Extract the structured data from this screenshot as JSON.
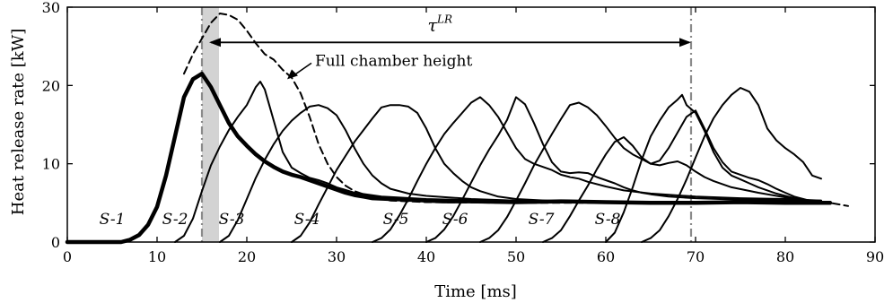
{
  "chart_data": {
    "type": "line",
    "xlabel": "Time [ms]",
    "ylabel": "Heat release rate [kW]",
    "xlim": [
      0,
      90
    ],
    "ylim": [
      0,
      30
    ],
    "xticks": [
      0,
      10,
      20,
      30,
      40,
      50,
      60,
      70,
      80,
      90
    ],
    "yticks": [
      0,
      10,
      20,
      30
    ],
    "grid": false,
    "annotations": {
      "tau": {
        "text": "τ",
        "sup": "LR",
        "start": 15.8,
        "end": 69.5,
        "y": 25.5
      },
      "full_chamber": {
        "text": "Full chamber height",
        "arrow_to": [
          24.5,
          20.8
        ]
      },
      "vlines": [
        15.0,
        69.5
      ],
      "shaded_band": [
        15.0,
        16.9
      ]
    },
    "stage_labels": [
      {
        "text": "S-1",
        "x": 5.0
      },
      {
        "text": "S-2",
        "x": 12.0
      },
      {
        "text": "S-3",
        "x": 18.3
      },
      {
        "text": "S-4",
        "x": 26.7
      },
      {
        "text": "S-5",
        "x": 36.6
      },
      {
        "text": "S-6",
        "x": 43.2
      },
      {
        "text": "S-7",
        "x": 52.8
      },
      {
        "text": "S-8",
        "x": 60.2
      }
    ],
    "series": [
      {
        "style": "thick",
        "x": [
          0,
          3,
          6,
          7,
          8,
          9,
          10,
          11,
          12,
          13,
          14,
          15,
          16,
          17,
          18,
          19,
          20,
          21,
          22,
          23,
          24,
          25,
          26,
          27,
          28,
          29,
          30,
          31,
          32,
          33,
          34,
          36,
          38,
          40,
          42,
          45,
          50,
          55,
          60,
          65,
          70,
          75,
          80,
          85
        ],
        "y": [
          0,
          0,
          0,
          0.3,
          0.9,
          2.2,
          4.5,
          8.5,
          13.5,
          18.5,
          20.8,
          21.5,
          19.8,
          17.5,
          15.2,
          13.5,
          12.3,
          11.2,
          10.3,
          9.6,
          9.0,
          8.6,
          8.3,
          7.9,
          7.5,
          7.1,
          6.7,
          6.3,
          6.0,
          5.8,
          5.6,
          5.5,
          5.4,
          5.3,
          5.2,
          5.2,
          5.1,
          5.2,
          5.1,
          5.0,
          5.0,
          5.1,
          5.0,
          5.0
        ]
      },
      {
        "style": "dashed",
        "x": [
          13,
          14,
          15,
          16,
          17,
          18,
          19,
          20,
          21,
          22,
          23,
          24,
          25,
          26,
          27,
          28,
          29,
          30,
          31,
          32,
          33,
          34,
          35,
          36,
          40,
          50,
          60,
          70,
          80,
          85,
          87
        ],
        "y": [
          21.5,
          24.0,
          26.0,
          28.0,
          29.2,
          29.0,
          28.4,
          27.0,
          25.4,
          24.0,
          23.3,
          22.0,
          21.0,
          19.0,
          16.0,
          12.5,
          10.0,
          8.3,
          7.2,
          6.5,
          6.1,
          5.8,
          5.5,
          5.3,
          5.1,
          5.0,
          5.0,
          5.1,
          5.0,
          5.0,
          4.6
        ]
      },
      {
        "style": "thin",
        "x": [
          12,
          13,
          14,
          15,
          16,
          17,
          18,
          19,
          20,
          21,
          21.5,
          22,
          23,
          24,
          25,
          26,
          27,
          28,
          29,
          30,
          32,
          35,
          40,
          50,
          60,
          70,
          80,
          84
        ],
        "y": [
          0,
          0.8,
          3.0,
          6.5,
          9.8,
          12.2,
          14.3,
          16.0,
          17.5,
          19.8,
          20.5,
          19.5,
          15.5,
          11.5,
          9.5,
          8.8,
          8.2,
          7.9,
          7.5,
          7.0,
          6.3,
          5.8,
          5.5,
          5.2,
          5.1,
          5.0,
          5.0,
          5.0
        ]
      },
      {
        "style": "thin",
        "x": [
          17,
          18,
          19,
          20,
          21,
          22,
          23,
          24,
          25,
          26,
          27,
          28,
          29,
          30,
          31,
          32,
          33,
          34,
          35,
          36,
          38,
          40,
          45,
          50,
          60,
          70,
          80,
          84
        ],
        "y": [
          0,
          0.8,
          2.8,
          5.5,
          8.2,
          10.5,
          12.5,
          14.2,
          15.5,
          16.5,
          17.3,
          17.5,
          17.1,
          16.2,
          14.3,
          12.0,
          10.0,
          8.5,
          7.5,
          6.8,
          6.2,
          5.9,
          5.5,
          5.3,
          5.1,
          5.0,
          5.0,
          5.1
        ]
      },
      {
        "style": "thin",
        "x": [
          25,
          26,
          27,
          28,
          29,
          30,
          31,
          32,
          33,
          34,
          35,
          36,
          37,
          38,
          39,
          40,
          41,
          42,
          43,
          44,
          45,
          46,
          48,
          50,
          55,
          60,
          70,
          80,
          84
        ],
        "y": [
          0,
          0.8,
          2.5,
          4.8,
          7.0,
          9.2,
          11.0,
          12.8,
          14.3,
          15.8,
          17.2,
          17.5,
          17.5,
          17.3,
          16.5,
          14.5,
          12.0,
          10.0,
          8.8,
          7.8,
          7.0,
          6.5,
          5.8,
          5.5,
          5.2,
          5.1,
          5.0,
          5.0,
          5.1
        ]
      },
      {
        "style": "thin",
        "x": [
          34,
          35,
          36,
          37,
          38,
          39,
          40,
          41,
          42,
          43,
          44,
          45,
          46,
          47,
          48,
          49,
          50,
          51,
          52,
          53,
          54,
          55,
          56,
          57,
          58,
          60,
          62,
          65,
          70,
          75,
          80,
          84
        ],
        "y": [
          0,
          0.5,
          1.6,
          3.4,
          5.5,
          7.8,
          10.0,
          12.0,
          13.8,
          15.2,
          16.5,
          17.8,
          18.5,
          17.5,
          16.0,
          14.0,
          12.0,
          10.6,
          10.0,
          9.6,
          9.2,
          8.6,
          8.3,
          8.1,
          7.7,
          7.1,
          6.6,
          6.2,
          5.8,
          5.6,
          5.5,
          5.3
        ]
      },
      {
        "style": "thin",
        "x": [
          40,
          41,
          42,
          43,
          44,
          45,
          46,
          47,
          48,
          49,
          50,
          51,
          52,
          53,
          54,
          55,
          56,
          57,
          58,
          59,
          60,
          61,
          62,
          63,
          64,
          65,
          67,
          70,
          75,
          80,
          84
        ],
        "y": [
          0,
          0.5,
          1.6,
          3.3,
          5.4,
          7.6,
          9.8,
          11.8,
          13.6,
          15.6,
          18.5,
          17.6,
          15.2,
          12.5,
          10.2,
          9.0,
          8.8,
          8.9,
          8.8,
          8.3,
          7.9,
          7.5,
          7.0,
          6.6,
          6.3,
          6.1,
          5.8,
          5.6,
          5.4,
          5.3,
          5.3
        ]
      },
      {
        "style": "thin",
        "x": [
          46,
          47,
          48,
          49,
          50,
          51,
          52,
          53,
          54,
          55,
          56,
          57,
          58,
          59,
          60,
          61,
          62,
          63,
          64,
          65,
          66,
          67,
          68,
          69,
          70,
          71,
          72,
          74,
          77,
          80,
          84
        ],
        "y": [
          0,
          0.5,
          1.5,
          3.2,
          5.3,
          7.5,
          9.8,
          11.8,
          13.8,
          15.7,
          17.5,
          17.8,
          17.2,
          16.2,
          14.8,
          13.3,
          12.0,
          11.2,
          10.6,
          10.0,
          9.8,
          10.1,
          10.3,
          9.8,
          9.0,
          8.3,
          7.8,
          7.0,
          6.3,
          5.7,
          5.0
        ]
      },
      {
        "style": "thin",
        "x": [
          53,
          54,
          55,
          56,
          57,
          58,
          59,
          60,
          61,
          62,
          63,
          64,
          65,
          66,
          67,
          68,
          69,
          70,
          71,
          72,
          73,
          74,
          75,
          76,
          77,
          78,
          79,
          80,
          81,
          82,
          83,
          84
        ],
        "y": [
          0,
          0.5,
          1.5,
          3.3,
          5.3,
          7.2,
          9.3,
          11.2,
          12.8,
          13.4,
          12.3,
          10.8,
          10.0,
          10.4,
          12.0,
          14.0,
          16.0,
          16.8,
          14.5,
          12.0,
          10.2,
          9.0,
          8.6,
          8.2,
          7.9,
          7.4,
          6.8,
          6.3,
          5.8,
          5.5,
          5.2,
          5.0
        ]
      },
      {
        "style": "thin",
        "x": [
          60,
          61,
          62,
          63,
          64,
          65,
          66,
          67,
          68,
          68.5,
          69,
          70,
          71,
          72,
          73,
          74,
          75,
          76,
          77,
          78,
          79,
          80,
          81,
          82,
          83,
          84
        ],
        "y": [
          0,
          1.2,
          3.8,
          7.0,
          10.5,
          13.5,
          15.5,
          17.2,
          18.2,
          18.8,
          17.5,
          16.5,
          14.2,
          11.5,
          9.5,
          8.5,
          8.0,
          7.5,
          7.0,
          6.6,
          6.2,
          5.9,
          5.6,
          5.4,
          5.3,
          5.2
        ]
      },
      {
        "style": "thin",
        "x": [
          64,
          65,
          66,
          67,
          68,
          69,
          70,
          71,
          72,
          73,
          74,
          75,
          76,
          77,
          78,
          79,
          80,
          81,
          82,
          83,
          84
        ],
        "y": [
          0,
          0.5,
          1.5,
          3.3,
          5.5,
          8.0,
          10.8,
          13.5,
          15.8,
          17.5,
          18.8,
          19.7,
          19.2,
          17.5,
          14.5,
          13.0,
          12.0,
          11.2,
          10.2,
          8.5,
          8.1
        ]
      }
    ]
  }
}
